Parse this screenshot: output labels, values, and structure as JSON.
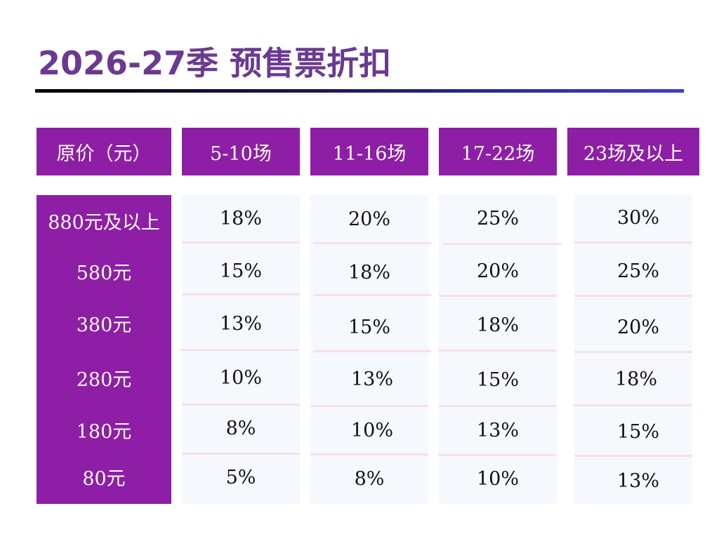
{
  "title": "2026-27季 预售票折扣",
  "colors": {
    "title": "#6a3a92",
    "header_bg": "#8e1ea6",
    "cell_bg": "#f5f8fd",
    "divider": "#f6e1e6"
  },
  "table": {
    "headers": [
      "原价（元）",
      "5-10场",
      "11-16场",
      "17-22场",
      "23场及以上"
    ],
    "rows": [
      {
        "price": "880元及以上",
        "values": [
          "18%",
          "20%",
          "25%",
          "30%"
        ]
      },
      {
        "price": "580元",
        "values": [
          "15%",
          "18%",
          "20%",
          "25%"
        ]
      },
      {
        "price": "380元",
        "values": [
          "13%",
          "15%",
          "18%",
          "20%"
        ]
      },
      {
        "price": "280元",
        "values": [
          "10%",
          "13%",
          "15%",
          "18%"
        ]
      },
      {
        "price": "180元",
        "values": [
          "8%",
          "10%",
          "13%",
          "15%"
        ]
      },
      {
        "price": "80元",
        "values": [
          "5%",
          "8%",
          "10%",
          "13%"
        ]
      }
    ]
  }
}
